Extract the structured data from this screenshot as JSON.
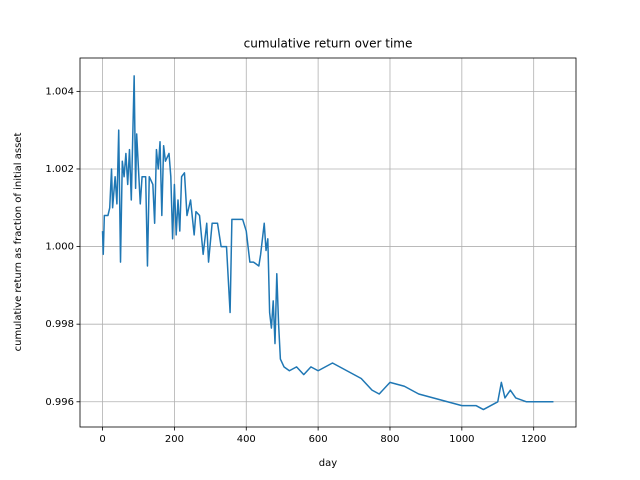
{
  "chart_data": {
    "type": "line",
    "title": "cumulative return over time",
    "xlabel": "day",
    "ylabel": "cumulative return as fraction of initial asset",
    "x": [
      0,
      2,
      5,
      15,
      20,
      25,
      28,
      35,
      40,
      45,
      50,
      55,
      60,
      65,
      70,
      75,
      80,
      88,
      92,
      95,
      100,
      105,
      110,
      120,
      125,
      130,
      140,
      145,
      150,
      155,
      160,
      165,
      170,
      175,
      185,
      190,
      195,
      200,
      205,
      210,
      215,
      220,
      228,
      235,
      245,
      255,
      260,
      270,
      280,
      290,
      295,
      305,
      320,
      330,
      345,
      355,
      360,
      390,
      400,
      410,
      420,
      435,
      440,
      450,
      455,
      460,
      465,
      470,
      475,
      480,
      485,
      490,
      495,
      505,
      520,
      540,
      560,
      580,
      600,
      620,
      640,
      680,
      720,
      750,
      770,
      800,
      840,
      880,
      920,
      960,
      1000,
      1040,
      1060,
      1100,
      1110,
      1120,
      1135,
      1150,
      1180,
      1220,
      1255
    ],
    "series": [
      {
        "name": "cumulative return",
        "color": "#1f77b4",
        "values": [
          1.0004,
          0.9998,
          1.0008,
          1.0008,
          1.001,
          1.002,
          1.001,
          1.0018,
          1.0011,
          1.003,
          0.9996,
          1.0022,
          1.0018,
          1.0024,
          1.0016,
          1.0025,
          1.0012,
          1.0044,
          1.0015,
          1.0029,
          1.002,
          1.0011,
          1.0018,
          1.0018,
          0.9995,
          1.0018,
          1.0016,
          1.0006,
          1.0025,
          1.002,
          1.0027,
          1.0008,
          1.0026,
          1.0022,
          1.0024,
          1.0018,
          1.0002,
          1.0016,
          1.0003,
          1.0012,
          1.0004,
          1.0018,
          1.0019,
          1.0008,
          1.0012,
          1.0003,
          1.0009,
          1.0008,
          0.9998,
          1.0006,
          0.9996,
          1.0006,
          1.0006,
          1.0,
          1.0,
          0.9983,
          1.0007,
          1.0007,
          1.0004,
          0.9996,
          0.9996,
          0.9995,
          0.9998,
          1.0006,
          0.9999,
          1.0002,
          0.9983,
          0.9979,
          0.9986,
          0.9975,
          0.9993,
          0.998,
          0.9971,
          0.9969,
          0.9968,
          0.9969,
          0.9967,
          0.9969,
          0.9968,
          0.9969,
          0.997,
          0.9968,
          0.9966,
          0.9963,
          0.9962,
          0.9965,
          0.9964,
          0.9962,
          0.9961,
          0.996,
          0.9959,
          0.9959,
          0.9958,
          0.996,
          0.9965,
          0.9961,
          0.9963,
          0.9961,
          0.996,
          0.996,
          0.996
        ]
      }
    ],
    "xlim": [
      -62.75,
      1317.75
    ],
    "ylim": [
      0.99535,
      1.00486
    ],
    "xticks": [
      0,
      200,
      400,
      600,
      800,
      1000,
      1200
    ],
    "yticks": [
      0.996,
      0.998,
      {
        "value": 1.0,
        "label": "1.000"
      },
      1.002,
      1.004
    ],
    "grid": true
  }
}
